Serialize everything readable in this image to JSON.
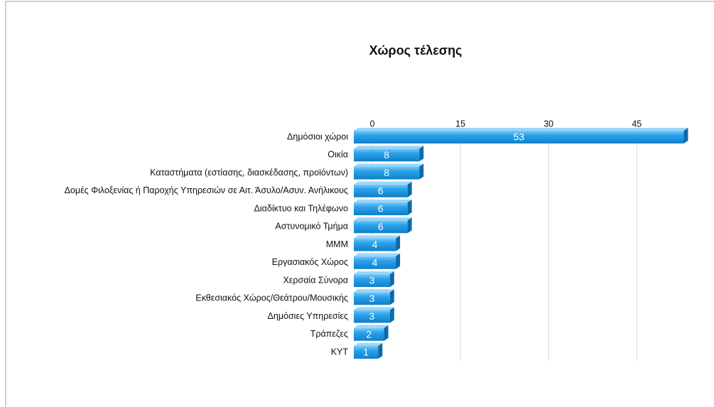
{
  "chart_data": {
    "type": "bar",
    "orientation": "horizontal",
    "title": "Χώρος τέλεσης",
    "categories": [
      "Δημόσιοι χώροι",
      "Οικία",
      "Καταστήματα (εστίασης, διασκέδασης, προϊόντων)",
      "Δομές Φιλοξενίας ή Παροχής Υπηρεσιών σε Αιτ. Άσυλο/Ασυν. Ανήλικους",
      "Διαδίκτυο και Τηλέφωνο",
      "Αστυνομικό Τμήμα",
      "ΜΜΜ",
      "Εργασιακός Χώρος",
      "Χερσαία Σύνορα",
      "Εκθεσιακός Χώρος/Θεάτρου/Μουσικής",
      "Δημόσιες Υπηρεσίες",
      "Τράπεζες",
      "ΚΥΤ"
    ],
    "values": [
      53,
      8,
      8,
      6,
      6,
      6,
      4,
      4,
      3,
      3,
      3,
      2,
      1
    ],
    "color": "#1e9be8",
    "xlim": [
      0,
      55
    ],
    "xticks": [
      0,
      15,
      30,
      45
    ],
    "grid": true
  }
}
